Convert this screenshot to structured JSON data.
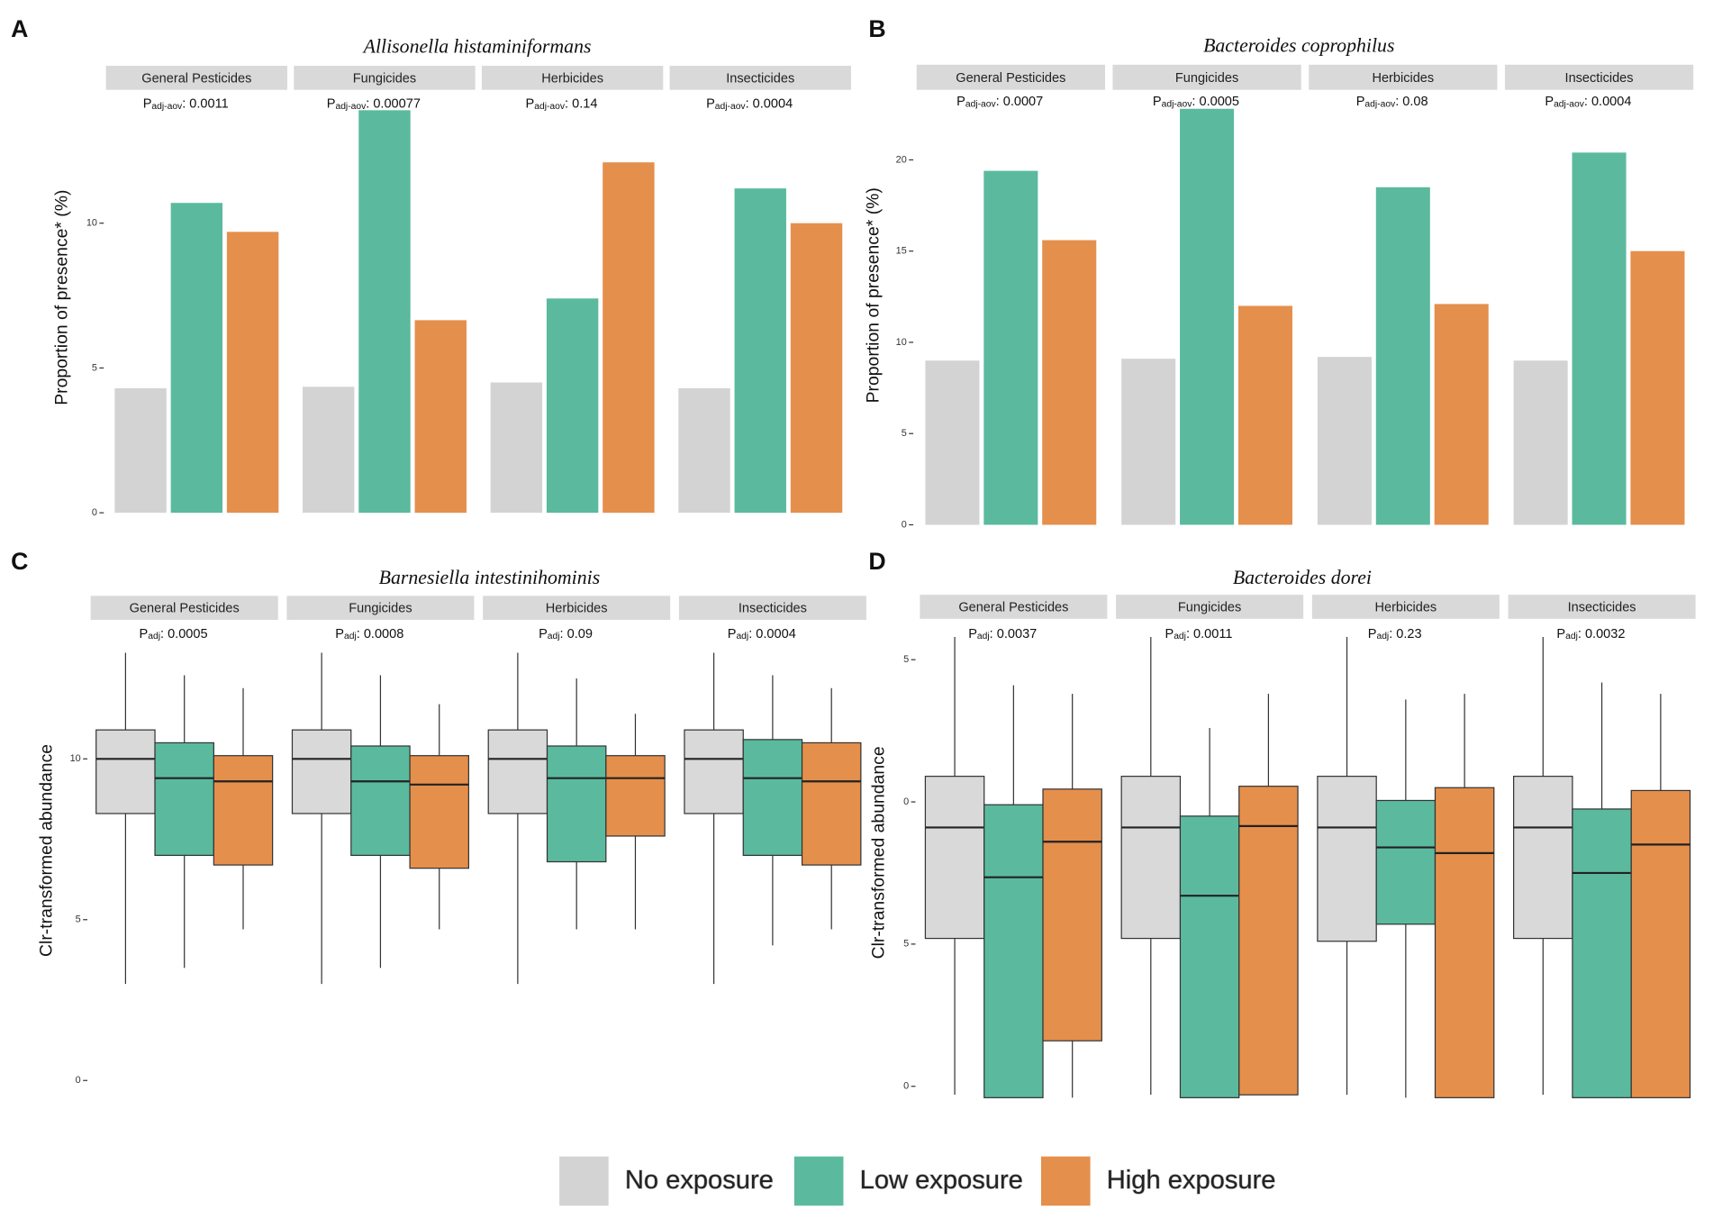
{
  "chart_data": [
    {
      "type": "bar",
      "panel": "A",
      "title": "Allisonella histaminiformans",
      "ylabel": "Proportion of presence* (%)",
      "categories": [
        "General Pesticides",
        "Fungicides",
        "Herbicides",
        "Insecticides"
      ],
      "annotations": [
        {
          "symbol": "P",
          "subscript": "adj-aov",
          "text": ": 0.0011"
        },
        {
          "symbol": "P",
          "subscript": "adj-aov",
          "text": ": 0.00077"
        },
        {
          "symbol": "P",
          "subscript": "adj-aov",
          "text": ": 0.14"
        },
        {
          "symbol": "P",
          "subscript": "adj-aov",
          "text": ": 0.0004"
        }
      ],
      "series": [
        {
          "name": "No exposure",
          "color": "#d3d3d3",
          "values": [
            4.3,
            4.35,
            4.5,
            4.3
          ]
        },
        {
          "name": "Low exposure",
          "color": "#5bba9e",
          "values": [
            10.7,
            13.9,
            7.4,
            11.2
          ]
        },
        {
          "name": "High exposure",
          "color": "#e58f4c",
          "values": [
            9.7,
            6.65,
            12.1,
            10.0
          ]
        }
      ],
      "ylim": [
        0,
        14
      ],
      "yticks": [
        0,
        5,
        10
      ]
    },
    {
      "type": "bar",
      "panel": "B",
      "title": "Bacteroides coprophilus",
      "ylabel": "Proportion of presence* (%)",
      "categories": [
        "General Pesticides",
        "Fungicides",
        "Herbicides",
        "Insecticides"
      ],
      "annotations": [
        {
          "symbol": "P",
          "subscript": "adj-aov",
          "text": ": 0.0007"
        },
        {
          "symbol": "P",
          "subscript": "adj-aov",
          "text": ": 0.0005"
        },
        {
          "symbol": "P",
          "subscript": "adj-aov",
          "text": ": 0.08"
        },
        {
          "symbol": "P",
          "subscript": "adj-aov",
          "text": ": 0.0004"
        }
      ],
      "series": [
        {
          "name": "No exposure",
          "color": "#d3d3d3",
          "values": [
            9.0,
            9.1,
            9.2,
            9.0
          ]
        },
        {
          "name": "Low exposure",
          "color": "#5bba9e",
          "values": [
            19.4,
            22.8,
            18.5,
            20.4
          ]
        },
        {
          "name": "High exposure",
          "color": "#e58f4c",
          "values": [
            15.6,
            12.0,
            12.1,
            15.0
          ]
        }
      ],
      "ylim": [
        0,
        23
      ],
      "yticks": [
        0,
        5,
        10,
        15,
        20
      ]
    },
    {
      "type": "box",
      "panel": "C",
      "title": "Barnesiella intestinihominis",
      "ylabel": "Clr-transformed abundance",
      "categories": [
        "General Pesticides",
        "Fungicides",
        "Herbicides",
        "Insecticides"
      ],
      "annotations": [
        {
          "symbol": "P",
          "subscript": "adj",
          "text": ": 0.0005"
        },
        {
          "symbol": "P",
          "subscript": "adj",
          "text": ": 0.0008"
        },
        {
          "symbol": "P",
          "subscript": "adj",
          "text": ": 0.09"
        },
        {
          "symbol": "P",
          "subscript": "adj",
          "text": ": 0.0004"
        }
      ],
      "series": [
        {
          "name": "No exposure",
          "color": "#d9d9d9",
          "whisker_low": [
            3.0,
            3.0,
            3.0,
            3.0
          ],
          "q1": [
            8.3,
            8.3,
            8.3,
            8.3
          ],
          "median": [
            10.0,
            10.0,
            10.0,
            10.0
          ],
          "q3": [
            10.9,
            10.9,
            10.9,
            10.9
          ],
          "whisker_high": [
            13.3,
            13.3,
            13.3,
            13.3
          ]
        },
        {
          "name": "Low exposure",
          "color": "#5bba9e",
          "whisker_low": [
            3.5,
            3.5,
            4.7,
            4.2
          ],
          "q1": [
            7.0,
            7.0,
            6.8,
            7.0
          ],
          "median": [
            9.4,
            9.3,
            9.4,
            9.4
          ],
          "q3": [
            10.5,
            10.4,
            10.4,
            10.6
          ],
          "whisker_high": [
            12.6,
            12.6,
            12.5,
            12.6
          ]
        },
        {
          "name": "High exposure",
          "color": "#e58f4c",
          "whisker_low": [
            4.7,
            4.7,
            4.7,
            4.7
          ],
          "q1": [
            6.7,
            6.6,
            7.6,
            6.7
          ],
          "median": [
            9.3,
            9.2,
            9.4,
            9.3
          ],
          "q3": [
            10.1,
            10.1,
            10.1,
            10.5
          ],
          "whisker_high": [
            12.2,
            11.7,
            11.4,
            12.2
          ]
        }
      ],
      "ylim": [
        -0.8,
        13.2
      ],
      "yticks": [
        0,
        5,
        10
      ]
    },
    {
      "type": "box",
      "panel": "D",
      "title": "Bacteroides dorei",
      "ylabel": "Clr-transformed abundance",
      "categories": [
        "General Pesticides",
        "Fungicides",
        "Herbicides",
        "Insecticides"
      ],
      "annotations": [
        {
          "symbol": "P",
          "subscript": "adj",
          "text": ": 0.0037"
        },
        {
          "symbol": "P",
          "subscript": "adj",
          "text": ": 0.0011"
        },
        {
          "symbol": "P",
          "subscript": "adj",
          "text": ": 0.23"
        },
        {
          "symbol": "P",
          "subscript": "adj",
          "text": ": 0.0032"
        }
      ],
      "series": [
        {
          "name": "No exposure",
          "color": "#d9d9d9",
          "whisker_low": [
            -10.3,
            -10.3,
            -10.3,
            -10.3
          ],
          "q1": [
            -4.8,
            -4.8,
            -4.9,
            -4.8
          ],
          "median": [
            -0.9,
            -0.9,
            -0.9,
            -0.9
          ],
          "q3": [
            0.9,
            0.9,
            0.9,
            0.9
          ],
          "whisker_high": [
            5.8,
            5.8,
            5.8,
            5.8
          ]
        },
        {
          "name": "Low exposure",
          "color": "#5bba9e",
          "whisker_low": [
            -10.4,
            -10.4,
            -10.4,
            -10.4
          ],
          "q1": [
            -10.4,
            -10.4,
            -4.3,
            -10.4
          ],
          "median": [
            -2.65,
            -3.3,
            -1.6,
            -2.5
          ],
          "q3": [
            -0.1,
            -0.5,
            0.05,
            -0.25
          ],
          "whisker_high": [
            4.1,
            2.6,
            3.6,
            4.2
          ]
        },
        {
          "name": "High exposure",
          "color": "#e58f4c",
          "whisker_low": [
            -10.4,
            -10.3,
            -10.4,
            -10.4
          ],
          "q1": [
            -8.4,
            -10.3,
            -10.4,
            -10.4
          ],
          "median": [
            -1.4,
            -0.85,
            -1.8,
            -1.5
          ],
          "q3": [
            0.45,
            0.55,
            0.5,
            0.4
          ],
          "whisker_high": [
            3.8,
            3.8,
            3.8,
            3.8
          ]
        }
      ],
      "ylim": [
        -10.7,
        5.9
      ],
      "yticks": [
        {
          "value": -10,
          "label": "0"
        },
        {
          "value": -5,
          "label": "5"
        },
        0,
        5
      ]
    }
  ]
}
